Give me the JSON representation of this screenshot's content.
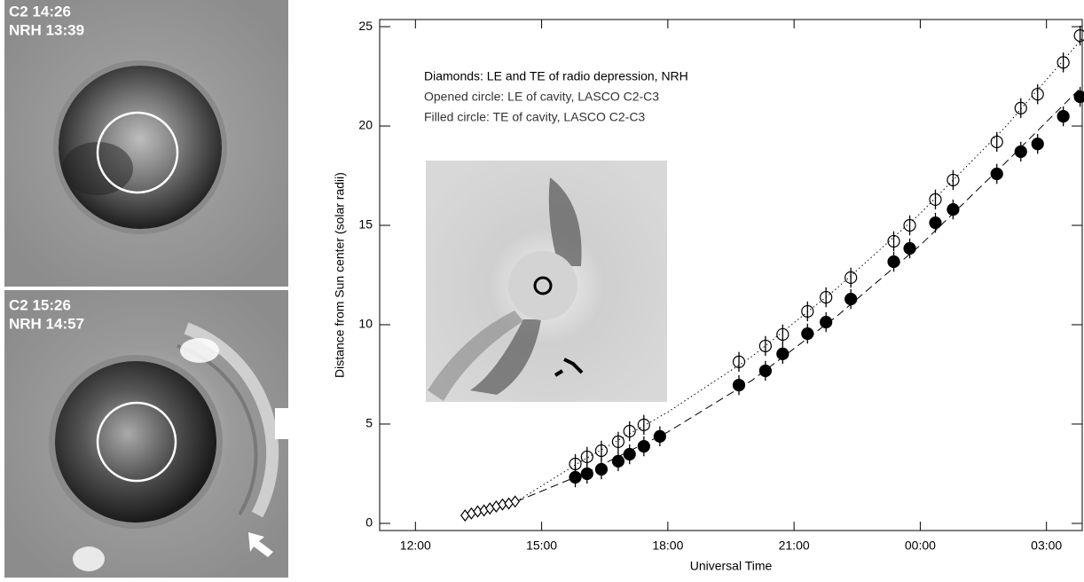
{
  "panels": [
    {
      "labels": [
        "C2 14:26",
        "NRH 13:39"
      ]
    },
    {
      "labels": [
        "C2 15:26",
        "NRH 14:57"
      ]
    }
  ],
  "chart_data": {
    "type": "scatter",
    "xlabel": "Universal Time",
    "ylabel": "Distance from Sun center (solar radii)",
    "annotations": [
      "Diamonds: LE and TE of radio depression, NRH",
      "Opened circle: LE of cavity, LASCO C2-C3",
      "Filled circle: TE of cavity, LASCO C2-C3"
    ],
    "xlim": [
      11.15,
      27.85
    ],
    "xticks": [
      {
        "value": 12,
        "label": "12:00"
      },
      {
        "value": 15,
        "label": "15:00"
      },
      {
        "value": 18,
        "label": "18:00"
      },
      {
        "value": 21,
        "label": "21:00"
      },
      {
        "value": 24,
        "label": "00:00"
      },
      {
        "value": 27,
        "label": "03:00"
      }
    ],
    "ylim": [
      -0.36,
      25.36
    ],
    "yticks": [
      0,
      5,
      10,
      15,
      20,
      25
    ],
    "series": [
      {
        "marker": "diamond",
        "color": "#000000",
        "x": [
          13.18,
          13.33,
          13.48,
          13.63,
          13.77,
          13.92,
          14.07,
          14.22,
          14.37
        ],
        "values": [
          0.4,
          0.5,
          0.6,
          0.65,
          0.75,
          0.85,
          0.95,
          1.0,
          1.1
        ]
      },
      {
        "marker": "open-circle",
        "color": "#000000",
        "error": 0.5,
        "x": [
          15.8,
          16.08,
          16.42,
          16.82,
          17.09,
          17.43,
          19.69,
          20.32,
          20.73,
          21.32,
          21.76,
          22.35,
          23.37,
          23.75,
          24.36,
          24.78,
          25.82,
          26.39,
          26.79,
          27.4,
          27.8
        ],
        "values": [
          2.99,
          3.35,
          3.66,
          4.11,
          4.64,
          4.96,
          8.13,
          8.93,
          9.51,
          10.67,
          11.38,
          12.37,
          14.2,
          15.0,
          16.3,
          17.28,
          19.2,
          20.9,
          21.6,
          23.2,
          24.55
        ]
      },
      {
        "marker": "filled-circle",
        "color": "#000000",
        "error": 0.5,
        "x": [
          15.8,
          16.08,
          16.42,
          16.82,
          17.09,
          17.43,
          17.81,
          19.69,
          20.32,
          20.73,
          21.32,
          21.76,
          22.35,
          23.37,
          23.75,
          24.36,
          24.78,
          25.82,
          26.39,
          26.79,
          27.4,
          27.8
        ],
        "values": [
          2.32,
          2.5,
          2.72,
          3.13,
          3.48,
          3.88,
          4.38,
          6.96,
          7.68,
          8.53,
          9.55,
          10.13,
          11.29,
          13.17,
          13.84,
          15.13,
          15.8,
          17.59,
          18.71,
          19.1,
          20.49,
          21.47
        ]
      }
    ],
    "fits": [
      {
        "style": "dotted",
        "x": [
          14.4,
          16,
          18,
          20,
          22,
          24,
          26,
          27.85
        ],
        "values": [
          1.1,
          3.2,
          5.6,
          8.4,
          11.8,
          15.6,
          19.9,
          24.4
        ]
      },
      {
        "style": "dashed",
        "x": [
          14.4,
          16,
          18,
          20,
          22,
          24,
          26,
          27.85
        ],
        "values": [
          1.1,
          2.5,
          4.6,
          7.2,
          10.4,
          14.0,
          18.1,
          22.0
        ]
      }
    ]
  }
}
